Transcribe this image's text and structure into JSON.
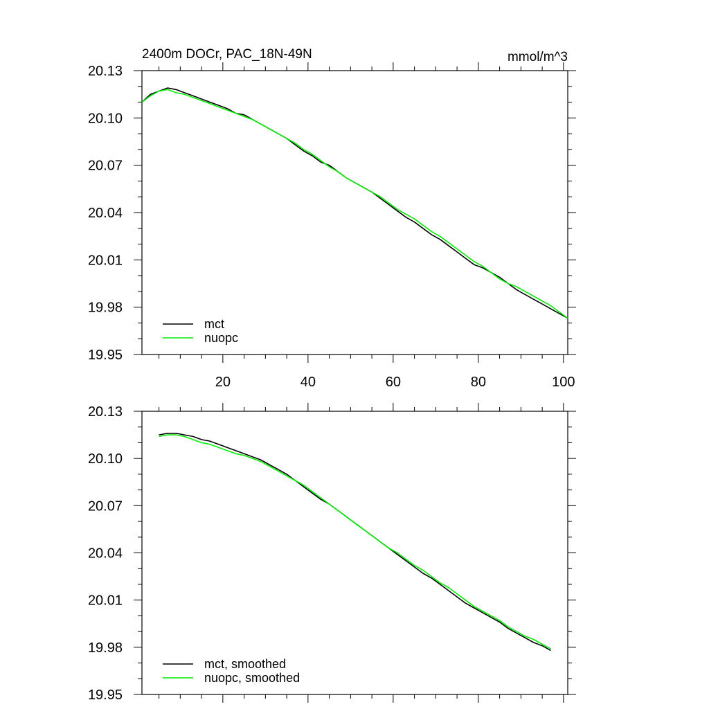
{
  "colors": {
    "mct": "#000000",
    "nuopc": "#00ee00",
    "frame": "#000000"
  },
  "chart_data": [
    {
      "type": "line",
      "title": "2400m DOCr, PAC_18N-49N",
      "units": "mmol/m^3",
      "xlabel": "",
      "ylabel": "",
      "xlim": [
        1,
        101
      ],
      "ylim": [
        19.95,
        20.13
      ],
      "xticks": [
        20,
        40,
        60,
        80,
        100
      ],
      "xtick_labels": [
        "20",
        "40",
        "60",
        "80",
        "100"
      ],
      "yticks": [
        19.95,
        19.98,
        20.01,
        20.04,
        20.07,
        20.1,
        20.13
      ],
      "ytick_labels": [
        "19.95",
        "19.98",
        "20.01",
        "20.04",
        "20.07",
        "20.10",
        "20.13"
      ],
      "legend_position": "bottom-left",
      "x": [
        1,
        3,
        5,
        7,
        9,
        11,
        13,
        15,
        17,
        19,
        21,
        23,
        25,
        27,
        29,
        31,
        33,
        35,
        37,
        39,
        41,
        43,
        45,
        47,
        49,
        51,
        53,
        55,
        57,
        59,
        61,
        63,
        65,
        67,
        69,
        71,
        73,
        75,
        77,
        79,
        81,
        83,
        85,
        87,
        89,
        91,
        93,
        95,
        97,
        99,
        101
      ],
      "series": [
        {
          "name": "mct",
          "color_key": "mct",
          "values": [
            20.11,
            20.115,
            20.117,
            20.119,
            20.118,
            20.116,
            20.114,
            20.112,
            20.11,
            20.108,
            20.106,
            20.103,
            20.102,
            20.099,
            20.096,
            20.093,
            20.09,
            20.087,
            20.083,
            20.079,
            20.076,
            20.072,
            20.07,
            20.066,
            20.062,
            20.059,
            20.056,
            20.053,
            20.049,
            20.045,
            20.041,
            20.037,
            20.034,
            20.03,
            20.026,
            20.023,
            20.019,
            20.015,
            20.011,
            20.007,
            20.005,
            20.002,
            19.999,
            19.995,
            19.991,
            19.988,
            19.985,
            19.982,
            19.979,
            19.976,
            19.973
          ]
        },
        {
          "name": "nuopc",
          "color_key": "nuopc",
          "values": [
            20.11,
            20.114,
            20.117,
            20.118,
            20.116,
            20.115,
            20.113,
            20.111,
            20.109,
            20.107,
            20.105,
            20.103,
            20.101,
            20.099,
            20.096,
            20.093,
            20.09,
            20.087,
            20.084,
            20.08,
            20.077,
            20.073,
            20.069,
            20.066,
            20.062,
            20.059,
            20.056,
            20.053,
            20.05,
            20.046,
            20.042,
            20.039,
            20.036,
            20.032,
            20.028,
            20.025,
            20.021,
            20.017,
            20.013,
            20.009,
            20.006,
            20.002,
            19.998,
            19.995,
            19.993,
            19.99,
            19.987,
            19.984,
            19.981,
            19.977,
            19.973
          ]
        }
      ]
    },
    {
      "type": "line",
      "title": "",
      "units": "",
      "xlabel": "",
      "ylabel": "",
      "xlim": [
        1,
        101
      ],
      "ylim": [
        19.95,
        20.13
      ],
      "xticks": [
        20,
        40,
        60,
        80,
        100
      ],
      "xtick_labels": [],
      "yticks": [
        19.95,
        19.98,
        20.01,
        20.04,
        20.07,
        20.1,
        20.13
      ],
      "ytick_labels": [
        "19.95",
        "19.98",
        "20.01",
        "20.04",
        "20.07",
        "20.10",
        "20.13"
      ],
      "legend_position": "bottom-left",
      "x": [
        5,
        7,
        9,
        11,
        13,
        15,
        17,
        19,
        21,
        23,
        25,
        27,
        29,
        31,
        33,
        35,
        37,
        39,
        41,
        43,
        45,
        47,
        49,
        51,
        53,
        55,
        57,
        59,
        61,
        63,
        65,
        67,
        69,
        71,
        73,
        75,
        77,
        79,
        81,
        83,
        85,
        87,
        89,
        91,
        93,
        95,
        97
      ],
      "series": [
        {
          "name": "mct, smoothed",
          "color_key": "mct",
          "values": [
            20.115,
            20.116,
            20.116,
            20.115,
            20.114,
            20.112,
            20.111,
            20.109,
            20.107,
            20.105,
            20.103,
            20.101,
            20.099,
            20.096,
            20.093,
            20.09,
            20.086,
            20.082,
            20.078,
            20.074,
            20.071,
            20.067,
            20.063,
            20.059,
            20.055,
            20.051,
            20.047,
            20.043,
            20.039,
            20.035,
            20.031,
            20.027,
            20.024,
            20.02,
            20.016,
            20.012,
            20.008,
            20.005,
            20.002,
            19.999,
            19.996,
            19.992,
            19.989,
            19.986,
            19.983,
            19.981,
            19.978
          ]
        },
        {
          "name": "nuopc, smoothed",
          "color_key": "nuopc",
          "values": [
            20.114,
            20.115,
            20.115,
            20.114,
            20.112,
            20.11,
            20.109,
            20.107,
            20.105,
            20.103,
            20.102,
            20.1,
            20.098,
            20.095,
            20.092,
            20.089,
            20.086,
            20.083,
            20.079,
            20.075,
            20.071,
            20.067,
            20.063,
            20.059,
            20.055,
            20.051,
            20.047,
            20.043,
            20.04,
            20.036,
            20.032,
            20.029,
            20.025,
            20.021,
            20.018,
            20.014,
            20.01,
            20.006,
            20.003,
            20.0,
            19.997,
            19.993,
            19.99,
            19.987,
            19.985,
            19.982,
            19.979
          ]
        }
      ]
    }
  ]
}
